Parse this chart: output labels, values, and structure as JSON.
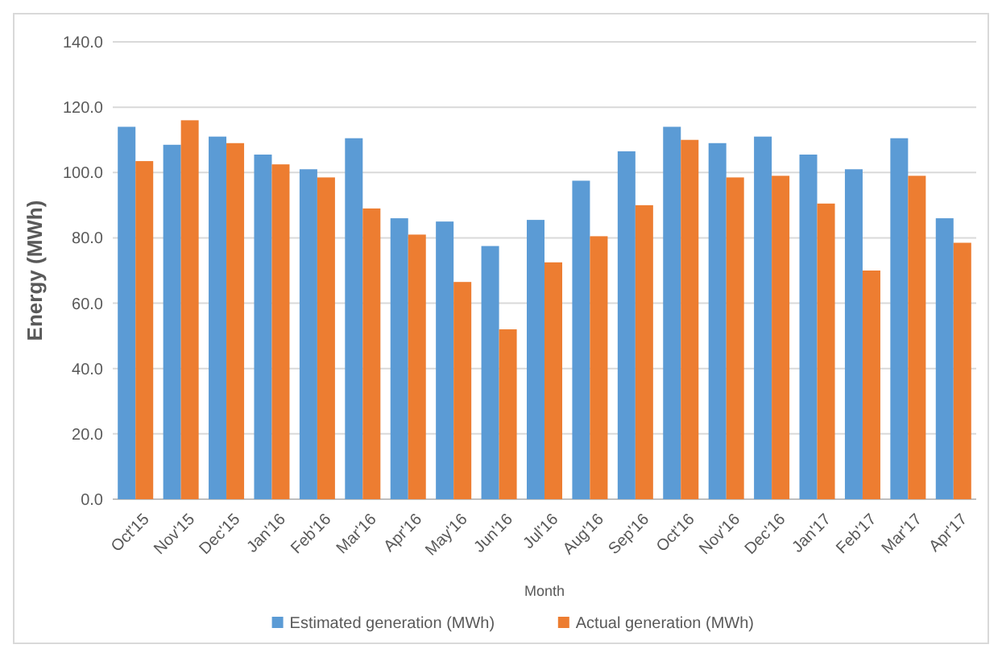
{
  "chart_data": {
    "type": "bar",
    "xlabel": "Month",
    "ylabel": "Energy (MWh)",
    "categories": [
      "Oct'15",
      "Nov'15",
      "Dec'15",
      "Jan'16",
      "Feb'16",
      "Mar'16",
      "Apr'16",
      "May'16",
      "Jun'16",
      "Jul'16",
      "Aug'16",
      "Sep'16",
      "Oct'16",
      "Nov'16",
      "Dec'16",
      "Jan'17",
      "Feb'17",
      "Mar'17",
      "Apr'17"
    ],
    "series": [
      {
        "name": "Estimated generation (MWh)",
        "color": "#5b9bd5",
        "values": [
          114,
          108.5,
          111,
          105.5,
          101,
          110.5,
          86,
          85,
          77.5,
          85.5,
          97.5,
          106.5,
          114,
          109,
          111,
          105.5,
          101,
          110.5,
          86
        ]
      },
      {
        "name": "Actual generation (MWh)",
        "color": "#ed7d31",
        "values": [
          103.5,
          116,
          109,
          102.5,
          98.5,
          89,
          81,
          66.5,
          52,
          72.5,
          80.5,
          90,
          110,
          98.5,
          99,
          90.5,
          70,
          99,
          78.5
        ]
      }
    ],
    "ylim": [
      0,
      140
    ],
    "yticks": [
      {
        "value": 0,
        "label": "0.0"
      },
      {
        "value": 20,
        "label": "20.0"
      },
      {
        "value": 40,
        "label": "40.0"
      },
      {
        "value": 60,
        "label": "60.0"
      },
      {
        "value": 80,
        "label": "80.0"
      },
      {
        "value": 100,
        "label": "100.0"
      },
      {
        "value": 120,
        "label": "120.0"
      },
      {
        "value": 140,
        "label": "140.0"
      }
    ],
    "grid": "y",
    "legend": "bottom"
  }
}
